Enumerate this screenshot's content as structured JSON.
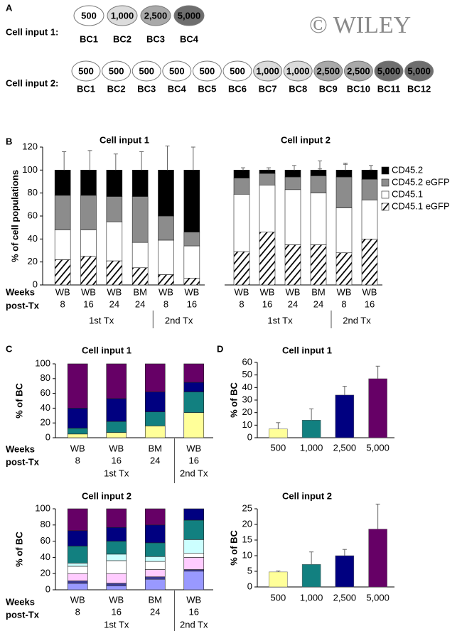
{
  "panel_labels": [
    "A",
    "B",
    "C",
    "D"
  ],
  "watermark": "© WILEY",
  "barcode_rows": [
    {
      "label": "Cell input 1:",
      "barcodes": [
        {
          "name": "BC1",
          "size": "500",
          "color": "#ffffff"
        },
        {
          "name": "BC2",
          "size": "1,000",
          "color": "#dcdcdc"
        },
        {
          "name": "BC3",
          "size": "2,500",
          "color": "#a9a9a9"
        },
        {
          "name": "BC4",
          "size": "5,000",
          "color": "#6e6e6e"
        }
      ]
    },
    {
      "label": "Cell input 2:",
      "barcodes": [
        {
          "name": "BC1",
          "size": "500",
          "color": "#ffffff"
        },
        {
          "name": "BC2",
          "size": "500",
          "color": "#ffffff"
        },
        {
          "name": "BC3",
          "size": "500",
          "color": "#ffffff"
        },
        {
          "name": "BC4",
          "size": "500",
          "color": "#ffffff"
        },
        {
          "name": "BC5",
          "size": "500",
          "color": "#ffffff"
        },
        {
          "name": "BC6",
          "size": "500",
          "color": "#ffffff"
        },
        {
          "name": "BC7",
          "size": "1,000",
          "color": "#dcdcdc"
        },
        {
          "name": "BC8",
          "size": "1,000",
          "color": "#dcdcdc"
        },
        {
          "name": "BC9",
          "size": "2,500",
          "color": "#a9a9a9"
        },
        {
          "name": "BC10",
          "size": "2,500",
          "color": "#a9a9a9"
        },
        {
          "name": "BC11",
          "size": "5,000",
          "color": "#6e6e6e"
        },
        {
          "name": "BC12",
          "size": "5,000",
          "color": "#6e6e6e"
        }
      ]
    }
  ],
  "chart_data": [
    {
      "type": "stacked_bar",
      "title": "Cell input 1",
      "y_label": "% of cell populations",
      "ylim": [
        0,
        120
      ],
      "yticks": [
        0,
        20,
        40,
        60,
        80,
        100,
        120
      ],
      "x_label": [
        "Weeks",
        "post-Tx"
      ],
      "groups": [
        {
          "label": "1st Tx",
          "categories": [
            [
              "WB",
              "8"
            ],
            [
              "WB",
              "16"
            ],
            [
              "WB",
              "24"
            ],
            [
              "BM",
              "24"
            ]
          ]
        },
        {
          "label": "2nd Tx",
          "categories": [
            [
              "WB",
              "8"
            ],
            [
              "WB",
              "16"
            ]
          ]
        }
      ],
      "series": [
        {
          "name": "CD45.1 eGFP",
          "color": "#000000",
          "hatched": true,
          "values": [
            22,
            25,
            21,
            15,
            9,
            6
          ],
          "errors": [
            4,
            4,
            4,
            3,
            3,
            2
          ]
        },
        {
          "name": "CD45.1",
          "color": "#ffffff",
          "values": [
            26,
            23,
            34,
            22,
            30,
            28
          ],
          "errors": [
            10,
            7,
            8,
            6,
            8,
            8
          ]
        },
        {
          "name": "CD45.2 eGFP",
          "color": "#8c8c8c",
          "values": [
            30,
            30,
            22,
            40,
            21,
            12
          ],
          "errors": [
            9,
            8,
            7,
            9,
            9,
            9
          ]
        },
        {
          "name": "CD45.2",
          "color": "#000000",
          "values": [
            22,
            22,
            23,
            23,
            40,
            54
          ],
          "errors": [
            16,
            17,
            14,
            16,
            21,
            20
          ]
        }
      ]
    },
    {
      "type": "stacked_bar",
      "title": "Cell input 2",
      "ylim": [
        0,
        120
      ],
      "legend": "right",
      "groups": [
        {
          "label": "1st Tx",
          "categories": [
            [
              "WB",
              "8"
            ],
            [
              "WB",
              "16"
            ],
            [
              "WB",
              "24"
            ],
            [
              "BM",
              "24"
            ]
          ]
        },
        {
          "label": "2nd Tx",
          "categories": [
            [
              "WB",
              "8"
            ],
            [
              "WB",
              "16"
            ]
          ]
        }
      ],
      "series": [
        {
          "name": "CD45.1 eGFP",
          "color": "#000000",
          "hatched": true,
          "values": [
            29,
            46,
            35,
            35,
            28,
            40
          ],
          "errors": [
            3,
            7,
            8,
            6,
            12,
            14
          ]
        },
        {
          "name": "CD45.1",
          "color": "#ffffff",
          "values": [
            50,
            41,
            48,
            45,
            39,
            34
          ],
          "errors": [
            12,
            6,
            8,
            8,
            14,
            14
          ]
        },
        {
          "name": "CD45.2 eGFP",
          "color": "#8c8c8c",
          "values": [
            14,
            10,
            11,
            15,
            27,
            18
          ],
          "errors": [
            3,
            3,
            5,
            6,
            12,
            8
          ]
        },
        {
          "name": "CD45.2",
          "color": "#000000",
          "values": [
            7,
            3,
            6,
            5,
            6,
            8
          ],
          "errors": [
            2,
            2,
            4,
            8,
            5,
            4
          ]
        }
      ]
    },
    {
      "type": "stacked_bar",
      "title": "Cell input 1",
      "y_label": "% of BC",
      "ylim": [
        0,
        100
      ],
      "yticks": [
        0,
        20,
        40,
        60,
        80,
        100
      ],
      "x_label": [
        "Weeks",
        "post-Tx"
      ],
      "groups": [
        {
          "label": "1st Tx",
          "categories": [
            [
              "WB",
              "8"
            ],
            [
              "WB",
              "16"
            ],
            [
              "BM",
              "24"
            ]
          ]
        },
        {
          "label": "2nd Tx",
          "categories": [
            [
              "WB",
              "16"
            ]
          ]
        }
      ],
      "series": [
        {
          "color": "#ffff99",
          "values": [
            5,
            7,
            16,
            34
          ]
        },
        {
          "color": "#128080",
          "values": [
            8,
            15,
            19,
            28
          ]
        },
        {
          "color": "#000080",
          "values": [
            27,
            31,
            27,
            13
          ]
        },
        {
          "color": "#660066",
          "values": [
            60,
            47,
            38,
            25
          ]
        }
      ]
    },
    {
      "type": "stacked_bar",
      "title": "Cell input 2",
      "y_label": "% of BC",
      "ylim": [
        0,
        100
      ],
      "yticks": [
        0,
        20,
        40,
        60,
        80,
        100
      ],
      "x_label": [
        "Weeks",
        "post-Tx"
      ],
      "groups": [
        {
          "label": "1st Tx",
          "categories": [
            [
              "WB",
              "8"
            ],
            [
              "WB",
              "16"
            ],
            [
              "BM",
              "24"
            ]
          ]
        },
        {
          "label": "2nd Tx",
          "categories": [
            [
              "WB",
              "16"
            ]
          ]
        }
      ],
      "series": [
        {
          "color": "#9999ff",
          "values": [
            8,
            5,
            13,
            23
          ]
        },
        {
          "color": "#3d3d99",
          "values": [
            3,
            3,
            3,
            2
          ]
        },
        {
          "color": "#ffccff",
          "values": [
            9,
            12,
            9,
            15
          ]
        },
        {
          "color": "#ffffff",
          "values": [
            9,
            16,
            10,
            5
          ]
        },
        {
          "color": "#ccffff",
          "values": [
            4,
            8,
            6,
            17
          ]
        },
        {
          "color": "#128080",
          "values": [
            21,
            16,
            17,
            24
          ]
        },
        {
          "color": "#000080",
          "values": [
            19,
            17,
            22,
            14
          ]
        },
        {
          "color": "#660066",
          "values": [
            27,
            23,
            20,
            0
          ]
        }
      ]
    },
    {
      "type": "bar",
      "title": "Cell input 1",
      "y_label": "% of BC",
      "ylim": [
        0,
        60
      ],
      "yticks": [
        0,
        10,
        20,
        30,
        40,
        50,
        60
      ],
      "categories": [
        "500",
        "1,000",
        "2,500",
        "5,000"
      ],
      "values": [
        7,
        14,
        34,
        47
      ],
      "errors": [
        5,
        9,
        7,
        10
      ],
      "colors": [
        "#ffff99",
        "#128080",
        "#000080",
        "#660066"
      ]
    },
    {
      "type": "bar",
      "title": "Cell input 2",
      "y_label": "% of BC",
      "ylim": [
        0,
        25
      ],
      "yticks": [
        0,
        5,
        10,
        15,
        20,
        25
      ],
      "categories": [
        "500",
        "1,000",
        "2,500",
        "5,000"
      ],
      "values": [
        4.8,
        7.2,
        10,
        18.5
      ],
      "errors": [
        0.3,
        4,
        2,
        8
      ],
      "colors": [
        "#ffff99",
        "#128080",
        "#000080",
        "#660066"
      ]
    }
  ]
}
